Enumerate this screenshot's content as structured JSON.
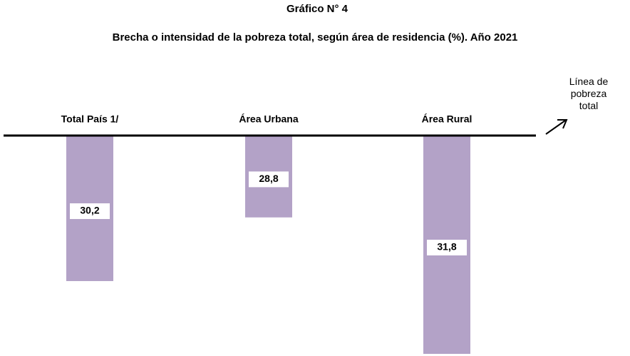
{
  "chart_data": {
    "type": "bar",
    "title": "Gráfico N° 4",
    "subtitle": "Brecha o intensidad de la pobreza total, según área de residencia (%). Año 2021",
    "annotation": "Línea de pobreza total",
    "categories": [
      "Total País 1/",
      "Área Urbana",
      "Área Rural"
    ],
    "values": [
      30.2,
      28.8,
      31.8
    ],
    "value_labels": [
      "30,2",
      "28,8",
      "31,8"
    ],
    "color": "#b3a2c7",
    "ylim": [
      27,
      32
    ]
  }
}
